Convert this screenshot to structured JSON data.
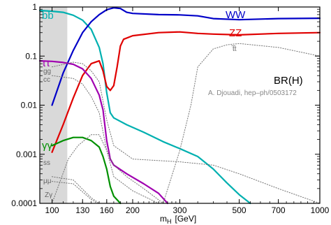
{
  "chart_data": {
    "type": "line",
    "title": "BR(H)",
    "annotation": "A. Djouadi, hep–ph/0503172",
    "xlabel": "m",
    "xlabel_sub": "H",
    "xlabel_unit": "[GeV]",
    "x_scale": "log",
    "y_scale": "log",
    "xlim": [
      90,
      1000
    ],
    "ylim": [
      0.0001,
      1
    ],
    "x_ticks": [
      {
        "value": 100,
        "label": "100"
      },
      {
        "value": 130,
        "label": "130"
      },
      {
        "value": 160,
        "label": "160"
      },
      {
        "value": 200,
        "label": "200"
      },
      {
        "value": 300,
        "label": "300"
      },
      {
        "value": 500,
        "label": "500"
      },
      {
        "value": 700,
        "label": "700"
      },
      {
        "value": 1000,
        "label": "1000"
      }
    ],
    "y_ticks": [
      {
        "value": 1,
        "label": "1"
      },
      {
        "value": 0.1,
        "label": "0.1"
      },
      {
        "value": 0.01,
        "label": "0.01"
      },
      {
        "value": 0.001,
        "label": "0.001"
      },
      {
        "value": 0.0001,
        "label": "0.0001"
      }
    ],
    "shaded_region": {
      "from": 90,
      "to": 114,
      "color": "#d9d9d9"
    },
    "series": [
      {
        "name": "b̅b",
        "color": "#00b0b0",
        "style": "solid",
        "points": [
          [
            90,
            0.85
          ],
          [
            100,
            0.82
          ],
          [
            110,
            0.78
          ],
          [
            120,
            0.68
          ],
          [
            130,
            0.54
          ],
          [
            140,
            0.35
          ],
          [
            150,
            0.15
          ],
          [
            155,
            0.07
          ],
          [
            160,
            0.018
          ],
          [
            165,
            0.007
          ],
          [
            170,
            0.0055
          ],
          [
            190,
            0.004
          ],
          [
            220,
            0.0028
          ],
          [
            260,
            0.0018
          ],
          [
            300,
            0.0013
          ],
          [
            350,
            0.0009
          ],
          [
            400,
            0.0005
          ],
          [
            450,
            0.00026
          ],
          [
            500,
            0.00015
          ],
          [
            550,
            0.0001
          ]
        ]
      },
      {
        "name": "WW",
        "color": "#0000c8",
        "style": "solid",
        "points": [
          [
            100,
            0.01
          ],
          [
            110,
            0.045
          ],
          [
            120,
            0.13
          ],
          [
            130,
            0.3
          ],
          [
            140,
            0.5
          ],
          [
            150,
            0.7
          ],
          [
            160,
            0.88
          ],
          [
            165,
            0.92
          ],
          [
            170,
            0.96
          ],
          [
            180,
            0.93
          ],
          [
            190,
            0.78
          ],
          [
            200,
            0.74
          ],
          [
            250,
            0.7
          ],
          [
            300,
            0.69
          ],
          [
            350,
            0.66
          ],
          [
            400,
            0.58
          ],
          [
            500,
            0.55
          ],
          [
            700,
            0.58
          ],
          [
            1000,
            0.59
          ]
        ]
      },
      {
        "name": "ZZ",
        "color": "#e00000",
        "style": "solid",
        "points": [
          [
            100,
            0.0011
          ],
          [
            110,
            0.004
          ],
          [
            120,
            0.014
          ],
          [
            130,
            0.04
          ],
          [
            140,
            0.07
          ],
          [
            150,
            0.08
          ],
          [
            155,
            0.05
          ],
          [
            160,
            0.024
          ],
          [
            165,
            0.02
          ],
          [
            170,
            0.025
          ],
          [
            175,
            0.06
          ],
          [
            180,
            0.16
          ],
          [
            185,
            0.22
          ],
          [
            200,
            0.26
          ],
          [
            250,
            0.3
          ],
          [
            300,
            0.31
          ],
          [
            350,
            0.29
          ],
          [
            400,
            0.28
          ],
          [
            500,
            0.27
          ],
          [
            700,
            0.29
          ],
          [
            1000,
            0.3
          ]
        ]
      },
      {
        "name": "ττ",
        "color": "#a000b0",
        "style": "solid",
        "points": [
          [
            90,
            0.08
          ],
          [
            100,
            0.078
          ],
          [
            110,
            0.074
          ],
          [
            120,
            0.068
          ],
          [
            130,
            0.055
          ],
          [
            140,
            0.035
          ],
          [
            150,
            0.016
          ],
          [
            155,
            0.008
          ],
          [
            160,
            0.0019
          ],
          [
            165,
            0.0008
          ],
          [
            170,
            0.0006
          ],
          [
            190,
            0.0004
          ],
          [
            220,
            0.00025
          ],
          [
            250,
            0.00016
          ],
          [
            270,
            0.0001
          ]
        ]
      },
      {
        "name": "γγ",
        "color": "#009000",
        "style": "solid",
        "points": [
          [
            100,
            0.0015
          ],
          [
            110,
            0.0019
          ],
          [
            120,
            0.0022
          ],
          [
            130,
            0.0022
          ],
          [
            140,
            0.0019
          ],
          [
            150,
            0.0014
          ],
          [
            155,
            0.0009
          ],
          [
            160,
            0.0005
          ],
          [
            165,
            0.00022
          ],
          [
            170,
            0.00014
          ],
          [
            180,
            0.0001
          ]
        ]
      },
      {
        "name": "t̅t",
        "color": "#707070",
        "style": "dotted",
        "points": [
          [
            260,
            0.0001
          ],
          [
            300,
            0.0012
          ],
          [
            330,
            0.01
          ],
          [
            350,
            0.06
          ],
          [
            400,
            0.14
          ],
          [
            450,
            0.17
          ],
          [
            500,
            0.18
          ],
          [
            700,
            0.15
          ],
          [
            1000,
            0.1
          ]
        ]
      },
      {
        "name": "gg",
        "color": "#707070",
        "style": "dotted",
        "points": [
          [
            100,
            0.06
          ],
          [
            120,
            0.075
          ],
          [
            130,
            0.07
          ],
          [
            140,
            0.05
          ],
          [
            150,
            0.03
          ],
          [
            160,
            0.005
          ],
          [
            170,
            0.0015
          ],
          [
            200,
            0.0008
          ],
          [
            300,
            0.0007
          ],
          [
            400,
            0.0006
          ],
          [
            500,
            0.0004
          ],
          [
            700,
            0.0002
          ],
          [
            1000,
            0.0001
          ]
        ]
      },
      {
        "name": "cc",
        "color": "#707070",
        "style": "dotted",
        "points": [
          [
            100,
            0.04
          ],
          [
            120,
            0.035
          ],
          [
            130,
            0.027
          ],
          [
            140,
            0.015
          ],
          [
            150,
            0.007
          ],
          [
            160,
            0.0012
          ],
          [
            170,
            0.00035
          ],
          [
            200,
            0.00018
          ],
          [
            250,
            0.0001
          ]
        ]
      },
      {
        "name": "ss",
        "color": "#707070",
        "style": "dotted",
        "points": [
          [
            100,
            0.00035
          ],
          [
            120,
            0.0003
          ],
          [
            140,
            0.00013
          ],
          [
            150,
            0.0001
          ]
        ]
      },
      {
        "name": "μμ",
        "color": "#707070",
        "style": "dotted",
        "points": [
          [
            100,
            0.00028
          ],
          [
            120,
            0.00025
          ],
          [
            140,
            0.00012
          ],
          [
            148,
            0.0001
          ]
        ]
      },
      {
        "name": "Zγ",
        "color": "#707070",
        "style": "dotted",
        "points": [
          [
            100,
            0.0001
          ],
          [
            115,
            0.0008
          ],
          [
            125,
            0.0015
          ],
          [
            140,
            0.0025
          ],
          [
            150,
            0.0025
          ],
          [
            160,
            0.0012
          ],
          [
            170,
            0.0006
          ],
          [
            190,
            0.00035
          ],
          [
            220,
            0.0002
          ],
          [
            260,
            0.0001
          ]
        ]
      }
    ],
    "labels": {
      "bb": "b̅b",
      "ww": "WW",
      "zz": "ZZ",
      "tt": "t̅t",
      "tautau": "ττ",
      "gg": "gg",
      "cc": "cc",
      "gamgam": "γγ",
      "ss": "ss",
      "mumu": "μμ",
      "zgam": "Zγ"
    },
    "grid": false,
    "legend": "inline labels"
  }
}
